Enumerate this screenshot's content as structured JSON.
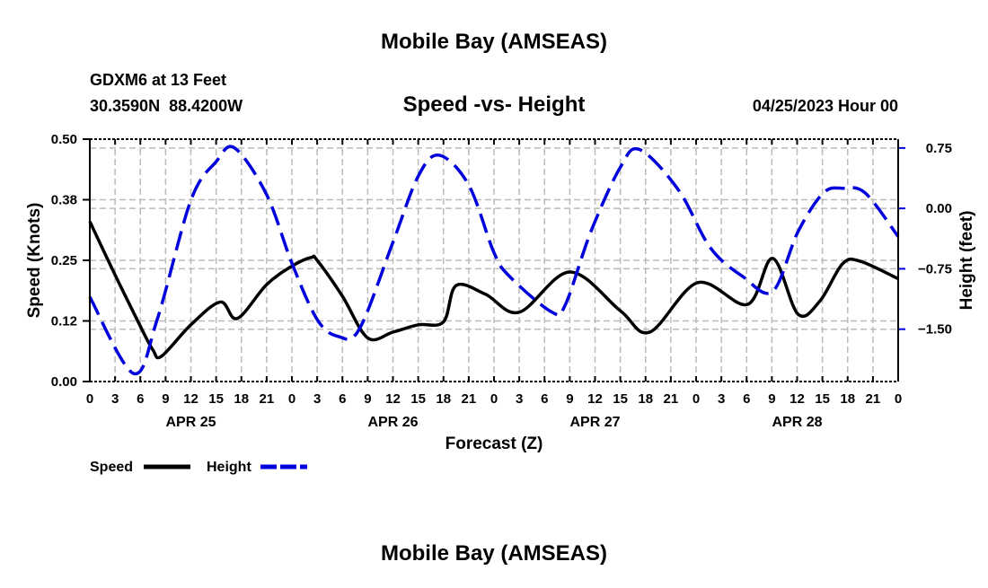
{
  "chart_data": {
    "type": "line",
    "title": "Mobile Bay (AMSEAS)",
    "footer_title": "Mobile Bay (AMSEAS)",
    "station": "GDXM6 at 13 Feet",
    "location": "30.3590N  88.4200W",
    "subtitle": "Speed -vs- Height",
    "date": "04/25/2023 Hour 00",
    "xlabel": "Forecast (Z)",
    "ylabel_left": "Speed (Knots)",
    "ylabel_right": "Height (feet)",
    "x_range_hours": [
      0,
      96
    ],
    "x_tick_labels": [
      "0",
      "3",
      "6",
      "9",
      "12",
      "15",
      "18",
      "21",
      "0",
      "3",
      "6",
      "9",
      "12",
      "15",
      "18",
      "21",
      "0",
      "3",
      "6",
      "9",
      "12",
      "15",
      "18",
      "21",
      "0",
      "3",
      "6",
      "9",
      "12",
      "15",
      "18",
      "21",
      "0"
    ],
    "day_labels": [
      {
        "label": "APR 25",
        "hour": 12
      },
      {
        "label": "APR 26",
        "hour": 36
      },
      {
        "label": "APR 27",
        "hour": 60
      },
      {
        "label": "APR 28",
        "hour": 84
      }
    ],
    "ylim_left": [
      0,
      0.5
    ],
    "yticks_left": [
      {
        "v": 0,
        "label": "0.00"
      },
      {
        "v": 0.125,
        "label": "0.12"
      },
      {
        "v": 0.25,
        "label": "0.25"
      },
      {
        "v": 0.375,
        "label": "0.38"
      },
      {
        "v": 0.5,
        "label": "0.50"
      }
    ],
    "ylim_right": [
      -2.15,
      0.86
    ],
    "yticks_right": [
      {
        "v": 0.75,
        "label": "0.75"
      },
      {
        "v": 0,
        "label": "0.00"
      },
      {
        "v": -0.75,
        "label": "-0.75"
      },
      {
        "v": -1.5,
        "label": "-1.50"
      }
    ],
    "grid": true,
    "legend_position": "bottom-left",
    "series": [
      {
        "name": "Speed",
        "axis": "left",
        "color": "#000000",
        "dash": false,
        "x": [
          0,
          3,
          6,
          7.5,
          8.5,
          12,
          15.5,
          17.5,
          21,
          24,
          26.3,
          27,
          30,
          33,
          36,
          39,
          42,
          43.5,
          47,
          51,
          57,
          63,
          66.5,
          72.2,
          78.1,
          81.1,
          84.1,
          86.7,
          89.4,
          91.5,
          96
        ],
        "y": [
          0.33,
          0.22,
          0.114,
          0.065,
          0.052,
          0.117,
          0.164,
          0.13,
          0.2,
          0.238,
          0.256,
          0.25,
          0.176,
          0.09,
          0.102,
          0.117,
          0.123,
          0.198,
          0.18,
          0.143,
          0.226,
          0.146,
          0.102,
          0.204,
          0.159,
          0.254,
          0.139,
          0.166,
          0.243,
          0.248,
          0.212
        ]
      },
      {
        "name": "Height",
        "axis": "right",
        "color": "#0000dd",
        "dash": true,
        "x": [
          0,
          5.2,
          8,
          12,
          15,
          17.2,
          21,
          24,
          27,
          29.5,
          32,
          36,
          39,
          41.5,
          45,
          48,
          49.9,
          54.9,
          56.5,
          59.5,
          63,
          65.3,
          69.9,
          73.7,
          77.6,
          81.1,
          84.1,
          87.1,
          89.4,
          92.1,
          96
        ],
        "y": [
          -1.1,
          -2.05,
          -1.38,
          0.1,
          0.58,
          0.75,
          0.17,
          -0.68,
          -1.38,
          -1.59,
          -1.5,
          -0.42,
          0.4,
          0.66,
          0.29,
          -0.55,
          -0.85,
          -1.29,
          -1.19,
          -0.29,
          0.51,
          0.73,
          0.23,
          -0.49,
          -0.85,
          -1.03,
          -0.29,
          0.19,
          0.25,
          0.19,
          -0.35
        ]
      }
    ]
  }
}
